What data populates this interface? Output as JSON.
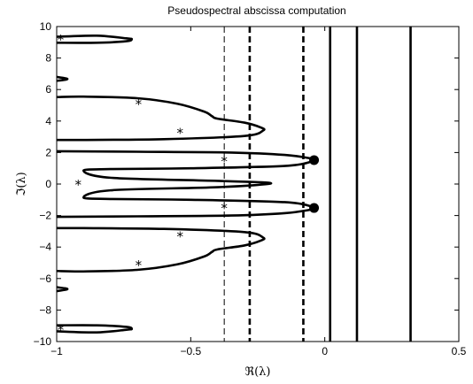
{
  "chart_data": {
    "type": "line",
    "title": "Pseudospectral abscissa computation",
    "xlabel": "ℜ(λ)",
    "ylabel": "ℑ(λ)",
    "xlim": [
      -1,
      0.5
    ],
    "ylim": [
      -10,
      10
    ],
    "xticks": [
      -1,
      -0.5,
      0,
      0.5
    ],
    "xtick_labels": [
      "−1",
      "−0.5",
      "0",
      "0.5"
    ],
    "yticks": [
      -10,
      -8,
      -6,
      -4,
      -2,
      0,
      2,
      4,
      6,
      8,
      10
    ],
    "ytick_labels": [
      "−10",
      "−8",
      "−6",
      "−4",
      "−2",
      "0",
      "2",
      "4",
      "6",
      "8",
      "10"
    ],
    "grid": false,
    "legend": "none",
    "series": [
      {
        "kind": "pseudospectrum-boundary",
        "style": "solid-thick",
        "points": [
          [
            -1,
            -9.35
          ],
          [
            -0.85,
            -9.42
          ],
          [
            -0.74,
            -9.25
          ],
          [
            -0.72,
            -9.2
          ],
          [
            -0.74,
            -9.07
          ],
          [
            -0.85,
            -8.97
          ],
          [
            -1,
            -8.97
          ]
        ]
      },
      {
        "kind": "pseudospectrum-boundary",
        "style": "solid-thick",
        "points": [
          [
            -1,
            -6.55
          ],
          [
            -0.97,
            -6.62
          ],
          [
            -0.96,
            -6.67
          ],
          [
            -0.97,
            -6.72
          ],
          [
            -1,
            -6.8
          ]
        ]
      },
      {
        "kind": "pseudospectrum-boundary",
        "style": "solid-thick",
        "points": [
          [
            -1,
            -5.52
          ],
          [
            -0.9,
            -5.55
          ],
          [
            -0.7,
            -5.45
          ],
          [
            -0.55,
            -5.1
          ],
          [
            -0.45,
            -4.6
          ],
          [
            -0.42,
            -4.3
          ],
          [
            -0.4,
            -4.15
          ],
          [
            -0.3,
            -3.9
          ],
          [
            -0.24,
            -3.6
          ],
          [
            -0.23,
            -3.4
          ],
          [
            -0.3,
            -3.05
          ],
          [
            -0.6,
            -2.85
          ],
          [
            -0.9,
            -2.8
          ],
          [
            -1,
            -2.8
          ]
        ]
      },
      {
        "kind": "pseudospectrum-boundary",
        "style": "solid-thick",
        "points": [
          [
            -1,
            -2.08
          ],
          [
            -0.7,
            -2.05
          ],
          [
            -0.35,
            -2.0
          ],
          [
            -0.15,
            -1.85
          ],
          [
            -0.05,
            -1.62
          ],
          [
            -0.04,
            -1.52
          ],
          [
            -0.05,
            -1.42
          ],
          [
            -0.15,
            -1.15
          ],
          [
            -0.5,
            -1.0
          ],
          [
            -0.8,
            -0.95
          ],
          [
            -0.9,
            -0.85
          ],
          [
            -0.8,
            -0.4
          ],
          [
            -0.4,
            -0.2
          ],
          [
            -0.2,
            0.05
          ],
          [
            -0.4,
            0.2
          ],
          [
            -0.8,
            0.4
          ],
          [
            -0.9,
            0.85
          ],
          [
            -0.8,
            0.95
          ],
          [
            -0.5,
            1.0
          ],
          [
            -0.15,
            1.15
          ],
          [
            -0.05,
            1.42
          ],
          [
            -0.04,
            1.52
          ],
          [
            -0.05,
            1.62
          ],
          [
            -0.15,
            1.85
          ],
          [
            -0.35,
            2.0
          ],
          [
            -0.7,
            2.05
          ],
          [
            -1,
            2.08
          ]
        ]
      },
      {
        "kind": "pseudospectrum-boundary",
        "style": "solid-thick",
        "points": [
          [
            -1,
            2.8
          ],
          [
            -0.9,
            2.8
          ],
          [
            -0.6,
            2.85
          ],
          [
            -0.3,
            3.05
          ],
          [
            -0.23,
            3.4
          ],
          [
            -0.24,
            3.6
          ],
          [
            -0.3,
            3.9
          ],
          [
            -0.4,
            4.15
          ],
          [
            -0.42,
            4.3
          ],
          [
            -0.45,
            4.6
          ],
          [
            -0.55,
            5.1
          ],
          [
            -0.7,
            5.45
          ],
          [
            -0.9,
            5.55
          ],
          [
            -1,
            5.52
          ]
        ]
      },
      {
        "kind": "pseudospectrum-boundary",
        "style": "solid-thick",
        "points": [
          [
            -1,
            6.55
          ],
          [
            -0.97,
            6.62
          ],
          [
            -0.96,
            6.67
          ],
          [
            -0.97,
            6.72
          ],
          [
            -1,
            6.8
          ]
        ]
      },
      {
        "kind": "pseudospectrum-boundary",
        "style": "solid-thick",
        "points": [
          [
            -1,
            8.97
          ],
          [
            -0.85,
            8.97
          ],
          [
            -0.74,
            9.07
          ],
          [
            -0.72,
            9.2
          ],
          [
            -0.74,
            9.25
          ],
          [
            -0.85,
            9.42
          ],
          [
            -1,
            9.35
          ]
        ]
      }
    ],
    "vertical_lines": [
      {
        "x": -0.375,
        "style": "dashed-thin"
      },
      {
        "x": -0.28,
        "style": "dashed-thick"
      },
      {
        "x": -0.08,
        "style": "dashed-thick"
      },
      {
        "x": 0.02,
        "style": "solid-thick"
      },
      {
        "x": 0.12,
        "style": "solid-thick"
      },
      {
        "x": 0.32,
        "style": "solid-thick"
      }
    ],
    "eigenvalues": [
      {
        "x": -0.985,
        "y": 9.2
      },
      {
        "x": -0.695,
        "y": 5.1
      },
      {
        "x": -0.54,
        "y": 3.3
      },
      {
        "x": -0.375,
        "y": 1.5
      },
      {
        "x": -0.92,
        "y": 0.0
      },
      {
        "x": -0.375,
        "y": -1.5
      },
      {
        "x": -0.54,
        "y": -3.3
      },
      {
        "x": -0.695,
        "y": -5.1
      },
      {
        "x": -0.985,
        "y": -9.2
      }
    ],
    "marked_points": [
      {
        "x": -0.04,
        "y": 1.52
      },
      {
        "x": -0.04,
        "y": -1.52
      }
    ]
  }
}
